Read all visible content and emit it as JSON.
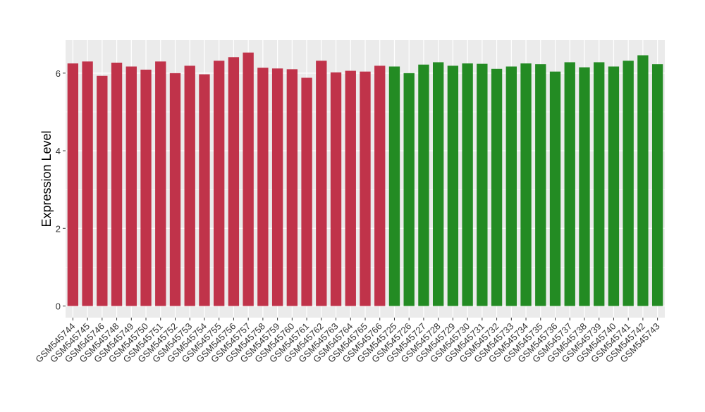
{
  "chart_data": {
    "type": "bar",
    "title": "",
    "xlabel": "",
    "ylabel": "Expression Level",
    "ylim": [
      -0.3,
      6.85
    ],
    "yticks": [
      0,
      2,
      4,
      6
    ],
    "grid": true,
    "legend": "none",
    "panel_background": "#ebebeb",
    "gridline_color": "#ffffff",
    "categories": [
      "GSM545744",
      "GSM545745",
      "GSM545746",
      "GSM545748",
      "GSM545749",
      "GSM545750",
      "GSM545751",
      "GSM545752",
      "GSM545753",
      "GSM545754",
      "GSM545755",
      "GSM545756",
      "GSM545757",
      "GSM545758",
      "GSM545759",
      "GSM545760",
      "GSM545761",
      "GSM545762",
      "GSM545763",
      "GSM545764",
      "GSM545765",
      "GSM545766",
      "GSM545725",
      "GSM545726",
      "GSM545727",
      "GSM545728",
      "GSM545729",
      "GSM545730",
      "GSM545731",
      "GSM545732",
      "GSM545733",
      "GSM545734",
      "GSM545735",
      "GSM545736",
      "GSM545737",
      "GSM545738",
      "GSM545739",
      "GSM545740",
      "GSM545741",
      "GSM545742",
      "GSM545743"
    ],
    "values": [
      6.25,
      6.3,
      5.93,
      6.27,
      6.17,
      6.09,
      6.3,
      6.0,
      6.19,
      5.97,
      6.32,
      6.41,
      6.53,
      6.14,
      6.12,
      6.1,
      5.88,
      6.32,
      6.02,
      6.06,
      6.04,
      6.19,
      6.17,
      6.0,
      6.22,
      6.28,
      6.19,
      6.25,
      6.24,
      6.11,
      6.17,
      6.25,
      6.23,
      6.04,
      6.28,
      6.15,
      6.28,
      6.17,
      6.32,
      6.46,
      6.23
    ],
    "groups": [
      {
        "color": "#c0334a",
        "start": 0,
        "end": 21
      },
      {
        "color": "#238b23",
        "start": 22,
        "end": 40
      }
    ]
  }
}
